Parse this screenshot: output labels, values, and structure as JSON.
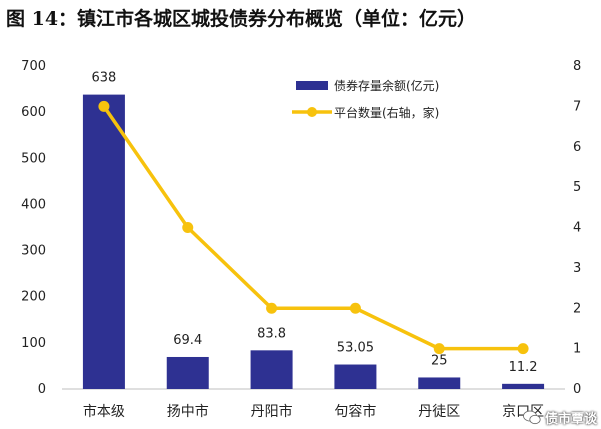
{
  "figure": {
    "title": "图 14：镇江市各城区城投债券分布概览（单位：亿元）",
    "watermark": "债市覃谈"
  },
  "colors": {
    "bar": "#2e3192",
    "line": "#f7c20d"
  },
  "chart_data": {
    "type": "bar+line",
    "categories": [
      "市本级",
      "扬中市",
      "丹阳市",
      "句容市",
      "丹徒区",
      "京口区"
    ],
    "series": [
      {
        "name": "债券存量余额(亿元)",
        "type": "bar",
        "axis": "left",
        "values": [
          638,
          69.4,
          83.8,
          53.05,
          25,
          11.2
        ],
        "labels": [
          "638",
          "69.4",
          "83.8",
          "53.05",
          "25",
          "11.2"
        ]
      },
      {
        "name": "平台数量(右轴，家)",
        "type": "line",
        "axis": "right",
        "values": [
          7,
          4,
          2,
          2,
          1,
          1
        ]
      }
    ],
    "y_left": {
      "min": 0,
      "max": 700,
      "ticks": [
        "0",
        "100",
        "200",
        "300",
        "400",
        "500",
        "600",
        "700"
      ]
    },
    "y_right": {
      "min": 0,
      "max": 8,
      "ticks": [
        "0",
        "1",
        "2",
        "3",
        "4",
        "5",
        "6",
        "7",
        "8"
      ]
    },
    "legend_position": "top-right",
    "grid": false
  }
}
